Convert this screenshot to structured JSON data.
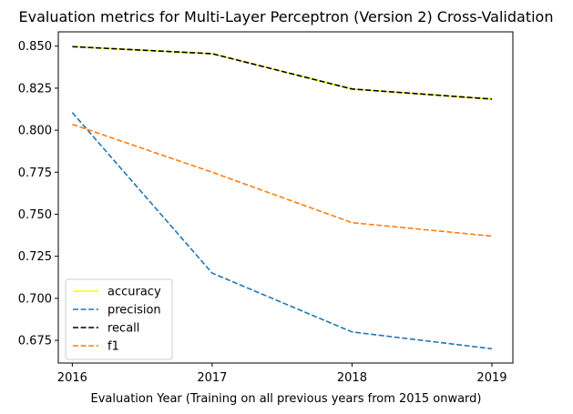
{
  "chart_data": {
    "type": "line",
    "title": "Evaluation metrics for Multi-Layer Perceptron (Version 2) Cross-Validation",
    "xlabel": "Evaluation Year (Training on all previous years from 2015 onward)",
    "ylabel": "",
    "x": [
      "2016",
      "2017",
      "2018",
      "2019"
    ],
    "xlim": [
      2015.9,
      2019.15
    ],
    "ylim": [
      0.6615,
      0.8585
    ],
    "yticks": [
      "0.675",
      "0.700",
      "0.725",
      "0.750",
      "0.775",
      "0.800",
      "0.825",
      "0.850"
    ],
    "grid": false,
    "legend_position": "lower-left",
    "series": [
      {
        "name": "accuracy",
        "values": [
          0.8497,
          0.8455,
          0.8245,
          0.8185
        ],
        "color": "#ffff00",
        "style": "solid"
      },
      {
        "name": "precision",
        "values": [
          0.8105,
          0.715,
          0.68,
          0.67
        ],
        "color": "#1f77b4",
        "style": "dashed"
      },
      {
        "name": "recall",
        "values": [
          0.8497,
          0.8455,
          0.8245,
          0.8185
        ],
        "color": "#000000",
        "style": "dashed"
      },
      {
        "name": "f1",
        "values": [
          0.8035,
          0.775,
          0.745,
          0.737
        ],
        "color": "#ff7f0e",
        "style": "dashed"
      }
    ]
  }
}
